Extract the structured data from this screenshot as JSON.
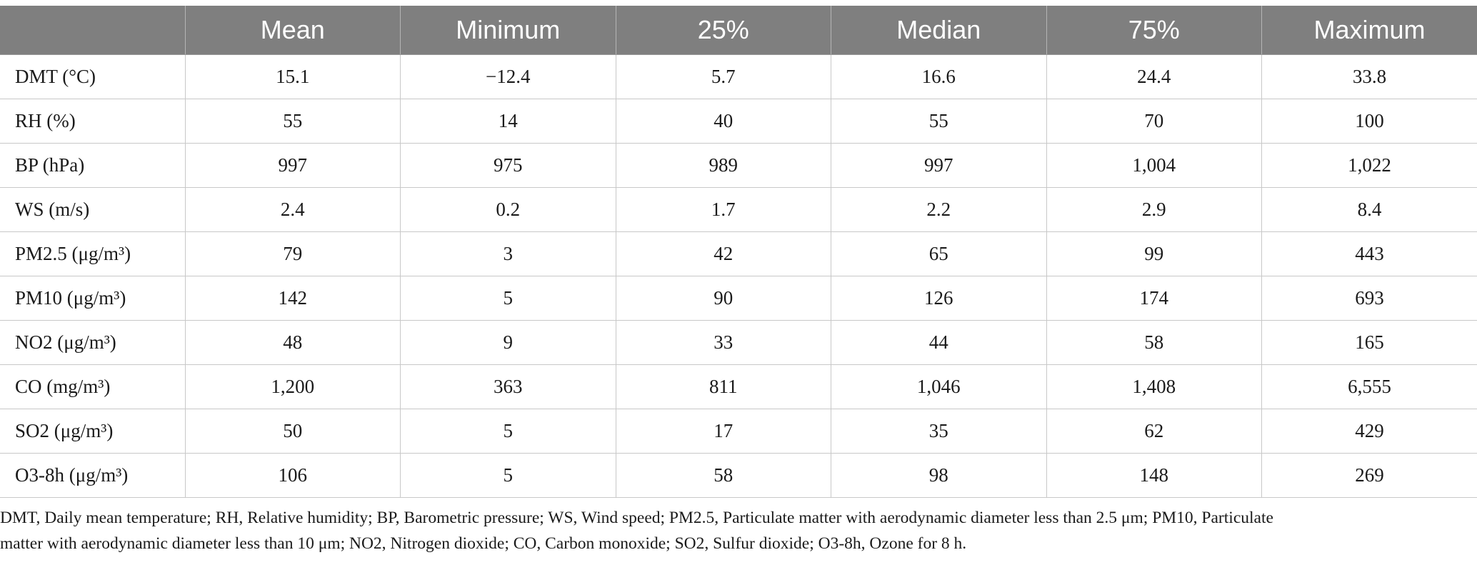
{
  "table": {
    "headers": [
      "",
      "Mean",
      "Minimum",
      "25%",
      "Median",
      "75%",
      "Maximum"
    ],
    "rows": [
      [
        "DMT (°C)",
        "15.1",
        "−12.4",
        "5.7",
        "16.6",
        "24.4",
        "33.8"
      ],
      [
        "RH (%)",
        "55",
        "14",
        "40",
        "55",
        "70",
        "100"
      ],
      [
        "BP (hPa)",
        "997",
        "975",
        "989",
        "997",
        "1,004",
        "1,022"
      ],
      [
        "WS (m/s)",
        "2.4",
        "0.2",
        "1.7",
        "2.2",
        "2.9",
        "8.4"
      ],
      [
        "PM2.5 (μg/m³)",
        "79",
        "3",
        "42",
        "65",
        "99",
        "443"
      ],
      [
        "PM10 (μg/m³)",
        "142",
        "5",
        "90",
        "126",
        "174",
        "693"
      ],
      [
        "NO2 (μg/m³)",
        "48",
        "9",
        "33",
        "44",
        "58",
        "165"
      ],
      [
        "CO (mg/m³)",
        "1,200",
        "363",
        "811",
        "1,046",
        "1,408",
        "6,555"
      ],
      [
        "SO2 (μg/m³)",
        "50",
        "5",
        "17",
        "35",
        "62",
        "429"
      ],
      [
        "O3-8h (μg/m³)",
        "106",
        "5",
        "58",
        "98",
        "148",
        "269"
      ]
    ]
  },
  "footnote": {
    "line1": "DMT, Daily mean temperature; RH, Relative humidity; BP, Barometric pressure; WS, Wind speed; PM2.5, Particulate matter with aerodynamic diameter less than 2.5 μm; PM10, Particulate",
    "line2": "matter with aerodynamic diameter less than 10 μm; NO2, Nitrogen dioxide; CO, Carbon monoxide; SO2, Sulfur dioxide; O3-8h, Ozone for 8 h."
  },
  "colors": {
    "header_bg": "#7f7f7f",
    "header_text": "#ffffff",
    "grid": "#c8c8c8"
  }
}
